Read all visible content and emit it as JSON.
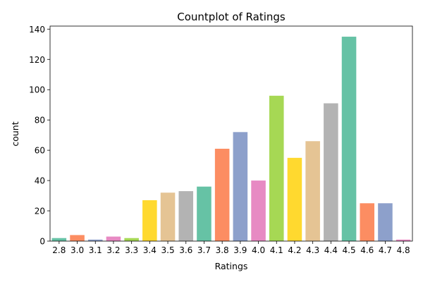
{
  "chart_data": {
    "type": "bar",
    "title": "Countplot of Ratings",
    "xlabel": "Ratings",
    "ylabel": "count",
    "categories": [
      "2.8",
      "3.0",
      "3.1",
      "3.2",
      "3.3",
      "3.4",
      "3.5",
      "3.6",
      "3.7",
      "3.8",
      "3.9",
      "4.0",
      "4.1",
      "4.2",
      "4.3",
      "4.4",
      "4.5",
      "4.6",
      "4.7",
      "4.8"
    ],
    "values": [
      2,
      4,
      1,
      3,
      2,
      27,
      32,
      33,
      36,
      61,
      72,
      40,
      96,
      55,
      66,
      91,
      135,
      25,
      25,
      1
    ],
    "ylim": [
      0,
      142
    ],
    "yticks": [
      0,
      20,
      40,
      60,
      80,
      100,
      120,
      140
    ],
    "grid": false,
    "palette": [
      "#66c2a5",
      "#fc8d62",
      "#8da0cb",
      "#e78ac3",
      "#a6d854",
      "#ffd92f",
      "#e5c494",
      "#b3b3b3"
    ]
  }
}
